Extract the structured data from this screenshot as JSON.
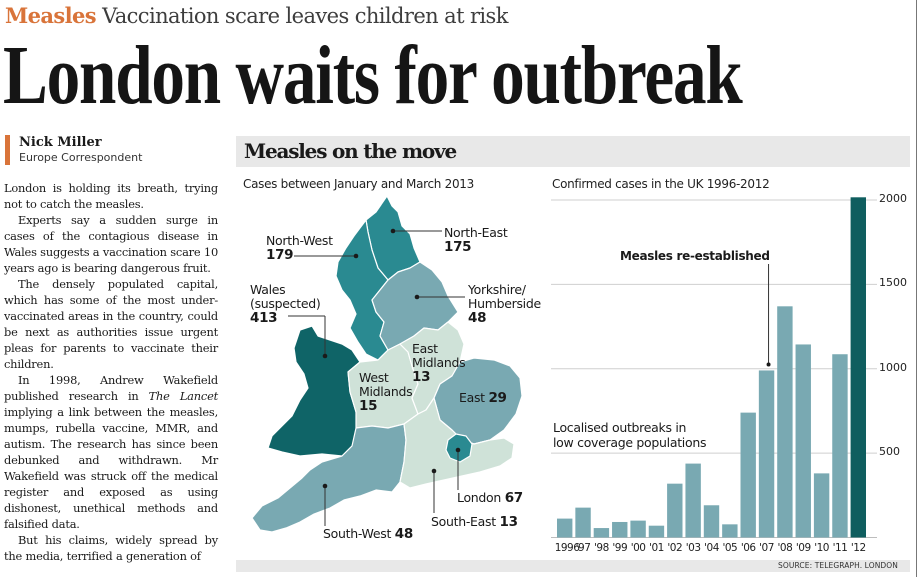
{
  "kicker": {
    "tag": "Measles",
    "text": "Vaccination scare leaves children at risk"
  },
  "headline": "London waits for outbreak",
  "byline": {
    "name": "Nick Miller",
    "role": "Europe Correspondent"
  },
  "article": {
    "paragraphs": [
      "London is holding its breath, trying not to catch the measles.",
      "Experts say a sudden surge in cases of the contagious disease in Wales suggests a vaccination scare 10 years ago is bearing dangerous fruit.",
      "The densely populated capital, which has some of the most under-vaccinated areas in the country, could be next as authorities issue urgent pleas for parents to vaccinate their children.",
      "In 1998, Andrew Wakefield published research in",
      "The Lancet",
      "implying a link between the measles, mumps, rubella vaccine, MMR, and autism. The research has since been debunked and withdrawn. Mr Wakefield was struck off the medical register and exposed as using dishonest, unethical methods and falsified data.",
      "But his claims, widely spread by the media, terrified a generation of"
    ]
  },
  "graphic": {
    "title": "Measles on the move",
    "source": "SOURCE: TELEGRAPH. LONDON",
    "map": {
      "title": "Cases between January and March 2013",
      "regions": [
        {
          "name": "North-West",
          "value": "179",
          "color": "#2a8a91"
        },
        {
          "name": "North-East",
          "value": "175",
          "color": "#2a8a91"
        },
        {
          "name": "Wales",
          "qualifier": "(suspected)",
          "value": "413",
          "color": "#0f6467"
        },
        {
          "name": "Yorkshire/",
          "name2": "Humberside",
          "value": "48",
          "color": "#79a9b2"
        },
        {
          "name": "East",
          "name2": "Midlands",
          "value": "13",
          "color": "#cfe2d8"
        },
        {
          "name": "West",
          "name2": "Midlands",
          "value": "15",
          "color": "#cfe2d8"
        },
        {
          "name": "East",
          "value": "29",
          "color": "#79a9b2"
        },
        {
          "name": "London",
          "value": "67",
          "color": "#2a8a91"
        },
        {
          "name": "South-East",
          "value": "13",
          "color": "#cfe2d8"
        },
        {
          "name": "South-West",
          "value": "48",
          "color": "#79a9b2"
        }
      ]
    },
    "annotations": {
      "reestablished": "Measles re-established",
      "localised_1": "Localised outbreaks in",
      "localised_2": "low coverage populations"
    }
  },
  "chart_data": {
    "type": "bar",
    "title": "Confirmed cases in the UK 1996-2012",
    "xlabel": "",
    "ylabel": "",
    "categories": [
      "1996",
      "'97",
      "'98",
      "'99",
      "'00",
      "'01",
      "'02",
      "'03",
      "'04",
      "'05",
      "'06",
      "'07",
      "'08",
      "'09",
      "'10",
      "'11",
      "'12"
    ],
    "values": [
      112,
      177,
      56,
      92,
      100,
      70,
      319,
      438,
      191,
      78,
      740,
      990,
      1370,
      1144,
      380,
      1086,
      2016
    ],
    "highlight_index": 16,
    "ylim": [
      0,
      2000
    ],
    "yticks": [
      500,
      1000,
      1500,
      2000
    ],
    "ytick_labels": [
      "500",
      "1000",
      "1500",
      "2000"
    ],
    "grid": true,
    "y_axis_side": "right",
    "colors": {
      "bar": "#79a9b2",
      "highlight": "#0f5e5f",
      "grid": "#cfcfcf"
    }
  }
}
